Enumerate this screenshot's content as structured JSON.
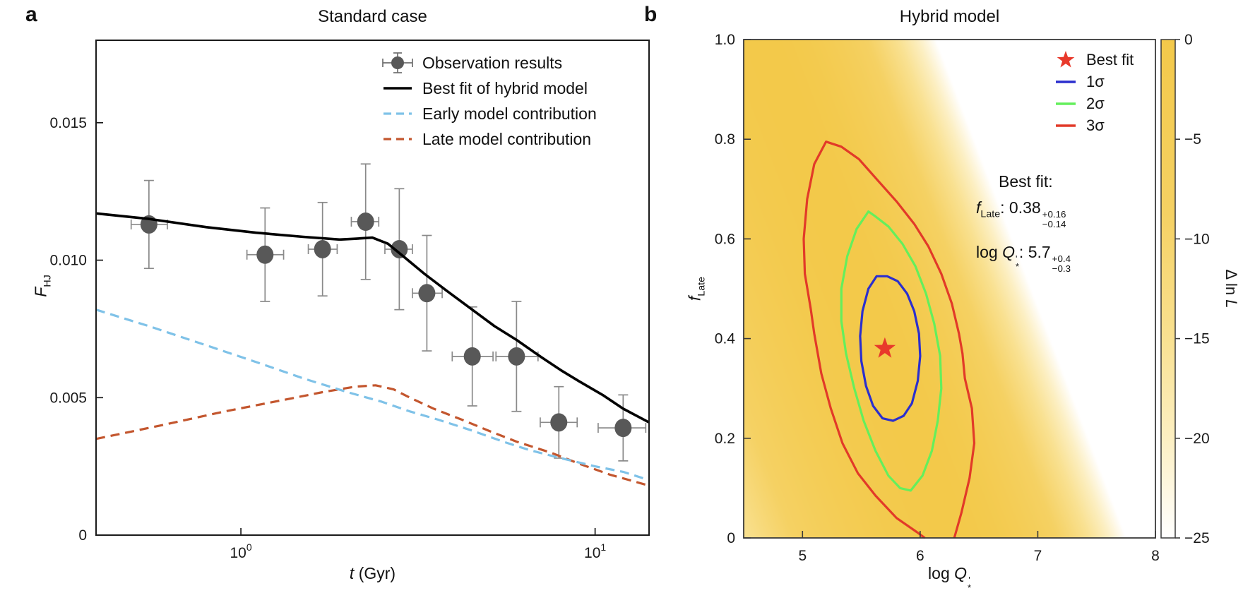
{
  "figure": {
    "panel_a_letter": "a",
    "panel_b_letter": "b",
    "background": "#ffffff"
  },
  "chart_data": [
    {
      "id": "standard_case",
      "type": "line+scatter",
      "title": "Standard case",
      "xlabel": {
        "italic": "t",
        "rest": " (Gyr)"
      },
      "ylabel": {
        "main": "F",
        "sub": "HJ"
      },
      "xscale": "log",
      "xlim": [
        0.39,
        14.2
      ],
      "ylim": [
        0,
        0.018
      ],
      "frame_color": "#1a1a1a",
      "xticks": [
        {
          "t": 1,
          "base": "10",
          "exp": "0"
        },
        {
          "t": 10,
          "base": "10",
          "exp": "1"
        }
      ],
      "yticks": [
        {
          "v": 0,
          "label": "0"
        },
        {
          "v": 0.005,
          "label": "0.005"
        },
        {
          "v": 0.01,
          "label": "0.010"
        },
        {
          "v": 0.015,
          "label": "0.015"
        }
      ],
      "observations": {
        "label": "Observation results",
        "color": "#585858",
        "errbar_color": "#8a8a8a",
        "t": [
          0.55,
          1.17,
          1.7,
          2.25,
          2.8,
          3.35,
          4.5,
          6.0,
          7.9,
          12.0
        ],
        "F": [
          0.0113,
          0.0102,
          0.0104,
          0.0114,
          0.0104,
          0.0088,
          0.0065,
          0.0065,
          0.0041,
          0.0039
        ],
        "F_err": [
          0.0016,
          0.0017,
          0.0017,
          0.0021,
          0.0022,
          0.0021,
          0.0018,
          0.002,
          0.0013,
          0.0012
        ],
        "t_err_lo": [
          0.06,
          0.13,
          0.15,
          0.2,
          0.25,
          0.3,
          0.55,
          0.75,
          0.9,
          1.8
        ],
        "t_err_hi": [
          0.07,
          0.15,
          0.17,
          0.2,
          0.25,
          0.35,
          0.65,
          0.9,
          1.0,
          1.9
        ]
      },
      "series": [
        {
          "name": "Best fit of hybrid model",
          "style": "solid",
          "color": "#000000",
          "width": 3.6,
          "points": [
            [
              0.39,
              0.0117
            ],
            [
              0.55,
              0.0115
            ],
            [
              0.8,
              0.0112
            ],
            [
              1.1,
              0.011
            ],
            [
              1.5,
              0.01085
            ],
            [
              1.9,
              0.01075
            ],
            [
              2.1,
              0.01078
            ],
            [
              2.35,
              0.01082
            ],
            [
              2.6,
              0.0106
            ],
            [
              2.9,
              0.0101
            ],
            [
              3.3,
              0.0095
            ],
            [
              3.8,
              0.0089
            ],
            [
              4.5,
              0.0082
            ],
            [
              5.2,
              0.0076
            ],
            [
              6.0,
              0.0071
            ],
            [
              7.0,
              0.0065
            ],
            [
              8.0,
              0.006
            ],
            [
              9.0,
              0.0056
            ],
            [
              10.5,
              0.0051
            ],
            [
              12.0,
              0.0046
            ],
            [
              14.2,
              0.0041
            ]
          ]
        },
        {
          "name": "Early model contribution",
          "style": "dashed",
          "color": "#7FC2E8",
          "width": 3.2,
          "points": [
            [
              0.39,
              0.0082
            ],
            [
              0.55,
              0.0076
            ],
            [
              0.8,
              0.0069
            ],
            [
              1.1,
              0.0063
            ],
            [
              1.5,
              0.0057
            ],
            [
              2.0,
              0.0052
            ],
            [
              2.5,
              0.00485
            ],
            [
              3.0,
              0.0045
            ],
            [
              3.6,
              0.0042
            ],
            [
              4.5,
              0.0038
            ],
            [
              5.5,
              0.0034
            ],
            [
              6.5,
              0.0031
            ],
            [
              8.0,
              0.0028
            ],
            [
              10.0,
              0.0025
            ],
            [
              12.0,
              0.0023
            ],
            [
              14.2,
              0.002
            ]
          ]
        },
        {
          "name": "Late model contribution",
          "style": "dashed",
          "color": "#C3562E",
          "width": 3.2,
          "points": [
            [
              0.39,
              0.0035
            ],
            [
              0.6,
              0.004
            ],
            [
              0.9,
              0.0045
            ],
            [
              1.3,
              0.0049
            ],
            [
              1.7,
              0.0052
            ],
            [
              2.1,
              0.0054
            ],
            [
              2.4,
              0.00545
            ],
            [
              2.7,
              0.0053
            ],
            [
              3.0,
              0.005
            ],
            [
              3.5,
              0.0046
            ],
            [
              4.2,
              0.0042
            ],
            [
              5.0,
              0.0038
            ],
            [
              6.0,
              0.0034
            ],
            [
              7.5,
              0.003
            ],
            [
              9.0,
              0.0026
            ],
            [
              11.0,
              0.0022
            ],
            [
              12.5,
              0.002
            ],
            [
              14.2,
              0.0018
            ]
          ]
        }
      ]
    },
    {
      "id": "hybrid_model",
      "type": "heatmap+contour",
      "title": "Hybrid model",
      "xlabel": {
        "pre": "log ",
        "main": "Q",
        "prime": "'",
        "star": "*"
      },
      "ylabel": {
        "main": "f",
        "sub": "Late"
      },
      "xlim": [
        4.5,
        8.0
      ],
      "ylim": [
        0,
        1
      ],
      "frame_color": "#3a3a3a",
      "xticks": [
        {
          "v": 5,
          "label": "5"
        },
        {
          "v": 6,
          "label": "6"
        },
        {
          "v": 7,
          "label": "7"
        },
        {
          "v": 8,
          "label": "8"
        }
      ],
      "yticks": [
        {
          "v": 0,
          "label": "0"
        },
        {
          "v": 0.2,
          "label": "0.2"
        },
        {
          "v": 0.4,
          "label": "0.4"
        },
        {
          "v": 0.6,
          "label": "0.6"
        },
        {
          "v": 0.8,
          "label": "0.8"
        },
        {
          "v": 1.0,
          "label": "1.0"
        }
      ],
      "heat_model": {
        "ridge_x_at_f0": 6.31,
        "ridge_slope": -1.62,
        "sigma_right": 0.72,
        "sigma_left": 1.16,
        "amplitude": 6.2,
        "floor": -25
      },
      "colorbar": {
        "label_pre": "Δ ln ",
        "label_italic": "L",
        "range": [
          0,
          -25
        ],
        "ticks": [
          {
            "v": 0,
            "label": "0"
          },
          {
            "v": -5,
            "label": "−5"
          },
          {
            "v": -10,
            "label": "−10"
          },
          {
            "v": -15,
            "label": "−15"
          },
          {
            "v": -20,
            "label": "−20"
          },
          {
            "v": -25,
            "label": "−25"
          }
        ],
        "stops": [
          {
            "at": 0,
            "color": "#F3C94A"
          },
          {
            "at": 0.35,
            "color": "#F5D163"
          },
          {
            "at": 0.6,
            "color": "#F9E191"
          },
          {
            "at": 0.8,
            "color": "#FCEFC2"
          },
          {
            "at": 1,
            "color": "#FFFFFF"
          }
        ]
      },
      "best_fit": {
        "label": "Best fit",
        "marker": "star",
        "color": "#E8392B",
        "x": 5.7,
        "y": 0.38
      },
      "contours": [
        {
          "name": "1σ",
          "color": "#2B2FCE",
          "closed": true,
          "points": [
            [
              5.63,
              0.525
            ],
            [
              5.56,
              0.5
            ],
            [
              5.51,
              0.455
            ],
            [
              5.49,
              0.405
            ],
            [
              5.5,
              0.355
            ],
            [
              5.54,
              0.305
            ],
            [
              5.6,
              0.265
            ],
            [
              5.68,
              0.24
            ],
            [
              5.77,
              0.235
            ],
            [
              5.86,
              0.245
            ],
            [
              5.93,
              0.27
            ],
            [
              5.98,
              0.315
            ],
            [
              6.0,
              0.365
            ],
            [
              5.99,
              0.41
            ],
            [
              5.95,
              0.455
            ],
            [
              5.89,
              0.49
            ],
            [
              5.81,
              0.515
            ],
            [
              5.72,
              0.525
            ]
          ]
        },
        {
          "name": "2σ",
          "color": "#64EF5C",
          "closed": true,
          "points": [
            [
              5.56,
              0.655
            ],
            [
              5.46,
              0.62
            ],
            [
              5.38,
              0.565
            ],
            [
              5.33,
              0.5
            ],
            [
              5.33,
              0.435
            ],
            [
              5.37,
              0.37
            ],
            [
              5.44,
              0.3
            ],
            [
              5.52,
              0.235
            ],
            [
              5.62,
              0.175
            ],
            [
              5.73,
              0.125
            ],
            [
              5.83,
              0.1
            ],
            [
              5.92,
              0.095
            ],
            [
              6.02,
              0.125
            ],
            [
              6.1,
              0.175
            ],
            [
              6.15,
              0.235
            ],
            [
              6.18,
              0.3
            ],
            [
              6.17,
              0.365
            ],
            [
              6.12,
              0.43
            ],
            [
              6.05,
              0.49
            ],
            [
              5.96,
              0.545
            ],
            [
              5.85,
              0.59
            ],
            [
              5.73,
              0.625
            ],
            [
              5.62,
              0.645
            ]
          ]
        },
        {
          "name": "3σ",
          "color": "#E23A28",
          "closed": false,
          "points": [
            [
              6.04,
              0.0
            ],
            [
              5.97,
              0.012
            ],
            [
              5.8,
              0.04
            ],
            [
              5.62,
              0.085
            ],
            [
              5.47,
              0.13
            ],
            [
              5.34,
              0.19
            ],
            [
              5.24,
              0.26
            ],
            [
              5.16,
              0.33
            ],
            [
              5.1,
              0.41
            ],
            [
              5.07,
              0.46
            ],
            [
              5.02,
              0.53
            ],
            [
              5.01,
              0.6
            ],
            [
              5.04,
              0.68
            ],
            [
              5.1,
              0.75
            ],
            [
              5.2,
              0.795
            ],
            [
              5.33,
              0.785
            ],
            [
              5.48,
              0.76
            ],
            [
              5.63,
              0.72
            ],
            [
              5.8,
              0.675
            ],
            [
              5.95,
              0.63
            ],
            [
              6.07,
              0.585
            ],
            [
              6.18,
              0.53
            ],
            [
              6.27,
              0.47
            ],
            [
              6.33,
              0.41
            ],
            [
              6.36,
              0.37
            ],
            [
              6.38,
              0.32
            ],
            [
              6.44,
              0.26
            ],
            [
              6.46,
              0.19
            ],
            [
              6.42,
              0.12
            ],
            [
              6.35,
              0.05
            ],
            [
              6.29,
              0.0
            ]
          ]
        }
      ],
      "annotation": {
        "heading": "Best fit:",
        "f_line": {
          "main": "f",
          "sub": "Late",
          "sep": ": ",
          "value": "0.38",
          "err_hi": "+0.16",
          "err_lo": "−0.14"
        },
        "q_line": {
          "pre": "log ",
          "main": "Q",
          "prime": "'",
          "star": "*",
          "sep": ": ",
          "value": "5.7",
          "err_hi": "+0.4",
          "err_lo": "−0.3"
        }
      }
    }
  ]
}
